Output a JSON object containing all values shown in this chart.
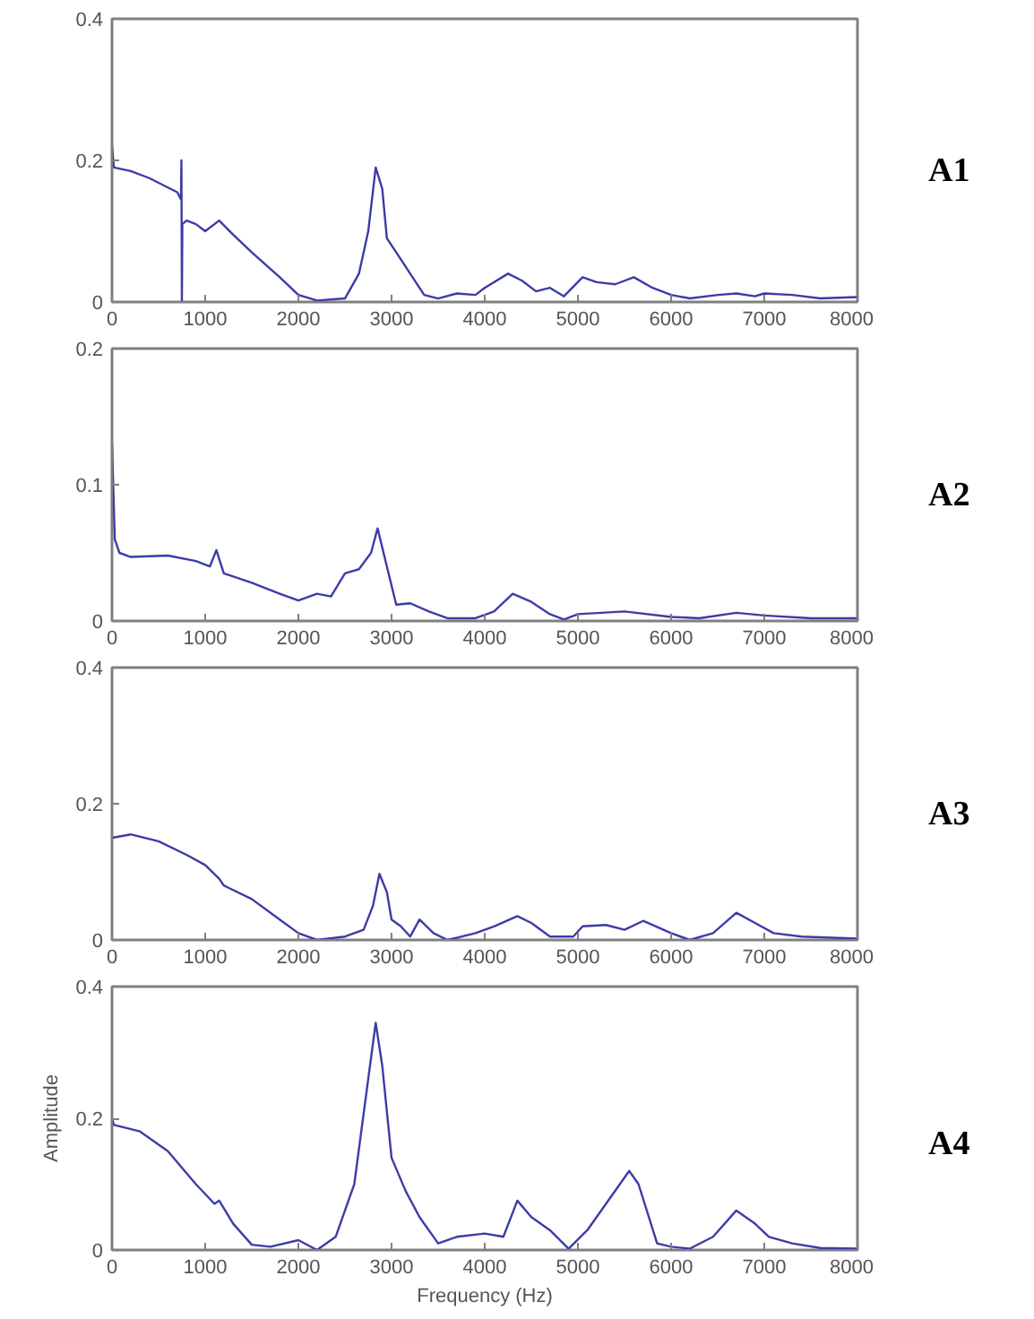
{
  "chart_data": [
    {
      "type": "line",
      "annotations": [
        "A1"
      ],
      "color": "#3c3ca8",
      "grid": false,
      "xlim": [
        0,
        8000
      ],
      "ylim": [
        0,
        0.4
      ],
      "xticks": [
        0,
        1000,
        2000,
        3000,
        4000,
        5000,
        6000,
        7000,
        8000
      ],
      "yticks": [
        0,
        0.2,
        0.4
      ],
      "x": [
        0,
        20,
        200,
        400,
        700,
        740,
        745,
        750,
        755,
        800,
        900,
        1000,
        1150,
        1300,
        1500,
        1800,
        2000,
        2200,
        2500,
        2650,
        2750,
        2830,
        2900,
        2950,
        3050,
        3200,
        3350,
        3500,
        3700,
        3900,
        4000,
        4250,
        4400,
        4550,
        4700,
        4850,
        5050,
        5200,
        5400,
        5600,
        5800,
        6000,
        6200,
        6500,
        6700,
        6900,
        7000,
        7300,
        7600,
        8000
      ],
      "values": [
        0.22,
        0.19,
        0.185,
        0.175,
        0.155,
        0.145,
        0.2,
        0.0,
        0.11,
        0.115,
        0.11,
        0.1,
        0.115,
        0.095,
        0.07,
        0.035,
        0.01,
        0.002,
        0.005,
        0.04,
        0.1,
        0.19,
        0.16,
        0.09,
        0.07,
        0.04,
        0.01,
        0.005,
        0.012,
        0.01,
        0.02,
        0.04,
        0.03,
        0.015,
        0.02,
        0.008,
        0.035,
        0.028,
        0.025,
        0.035,
        0.02,
        0.01,
        0.005,
        0.01,
        0.012,
        0.008,
        0.012,
        0.01,
        0.005,
        0.007
      ]
    },
    {
      "type": "line",
      "annotations": [
        "A2"
      ],
      "color": "#3c3ca8",
      "grid": false,
      "xlim": [
        0,
        8000
      ],
      "ylim": [
        0,
        0.2
      ],
      "xticks": [
        0,
        1000,
        2000,
        3000,
        4000,
        5000,
        6000,
        7000,
        8000
      ],
      "yticks": [
        0,
        0.1,
        0.2
      ],
      "x": [
        0,
        30,
        80,
        200,
        600,
        900,
        1050,
        1120,
        1200,
        1500,
        1800,
        2000,
        2200,
        2350,
        2500,
        2650,
        2780,
        2850,
        2950,
        3050,
        3200,
        3400,
        3600,
        3900,
        4100,
        4300,
        4500,
        4700,
        4850,
        5000,
        5500,
        6000,
        6300,
        6700,
        7000,
        7500,
        8000
      ],
      "values": [
        0.13,
        0.06,
        0.05,
        0.047,
        0.048,
        0.044,
        0.04,
        0.052,
        0.035,
        0.028,
        0.02,
        0.015,
        0.02,
        0.018,
        0.035,
        0.038,
        0.05,
        0.068,
        0.04,
        0.012,
        0.013,
        0.007,
        0.002,
        0.002,
        0.007,
        0.02,
        0.014,
        0.005,
        0.001,
        0.005,
        0.007,
        0.003,
        0.002,
        0.006,
        0.004,
        0.002,
        0.002
      ]
    },
    {
      "type": "line",
      "annotations": [
        "A3"
      ],
      "color": "#3c3ca8",
      "grid": false,
      "xlim": [
        0,
        8000
      ],
      "ylim": [
        0,
        0.4
      ],
      "xticks": [
        0,
        1000,
        2000,
        3000,
        4000,
        5000,
        6000,
        7000,
        8000
      ],
      "yticks": [
        0,
        0.2,
        0.4
      ],
      "x": [
        0,
        200,
        500,
        800,
        1000,
        1150,
        1200,
        1500,
        1800,
        2000,
        2200,
        2500,
        2700,
        2800,
        2870,
        2950,
        3000,
        3100,
        3200,
        3300,
        3450,
        3600,
        3900,
        4100,
        4350,
        4500,
        4700,
        4950,
        5050,
        5300,
        5500,
        5700,
        6000,
        6200,
        6450,
        6700,
        6900,
        7100,
        7400,
        8000
      ],
      "values": [
        0.15,
        0.155,
        0.145,
        0.125,
        0.11,
        0.09,
        0.08,
        0.06,
        0.03,
        0.01,
        0.0,
        0.005,
        0.015,
        0.05,
        0.097,
        0.07,
        0.03,
        0.02,
        0.005,
        0.03,
        0.01,
        0.0,
        0.01,
        0.02,
        0.035,
        0.025,
        0.005,
        0.005,
        0.02,
        0.022,
        0.015,
        0.028,
        0.01,
        0.0,
        0.01,
        0.04,
        0.025,
        0.01,
        0.005,
        0.002
      ]
    },
    {
      "type": "line",
      "annotations": [
        "A4"
      ],
      "xlabel": "Frequency (Hz)",
      "ylabel": "Amplitude",
      "color": "#3c3ca8",
      "grid": false,
      "xlim": [
        0,
        8000
      ],
      "ylim": [
        0,
        0.4
      ],
      "xticks": [
        0,
        1000,
        2000,
        3000,
        4000,
        5000,
        6000,
        7000,
        8000
      ],
      "yticks": [
        0,
        0.2,
        0.4
      ],
      "x": [
        0,
        20,
        300,
        600,
        900,
        1100,
        1150,
        1300,
        1500,
        1700,
        2000,
        2200,
        2400,
        2600,
        2750,
        2830,
        2900,
        3000,
        3150,
        3300,
        3500,
        3700,
        4000,
        4200,
        4350,
        4500,
        4700,
        4900,
        5100,
        5350,
        5550,
        5650,
        5850,
        6000,
        6200,
        6450,
        6700,
        6900,
        7050,
        7300,
        7600,
        8000
      ],
      "values": [
        0.2,
        0.19,
        0.18,
        0.15,
        0.1,
        0.07,
        0.075,
        0.04,
        0.008,
        0.005,
        0.015,
        0.0,
        0.02,
        0.1,
        0.26,
        0.345,
        0.28,
        0.14,
        0.09,
        0.05,
        0.01,
        0.02,
        0.025,
        0.02,
        0.075,
        0.05,
        0.03,
        0.002,
        0.03,
        0.08,
        0.12,
        0.1,
        0.01,
        0.005,
        0.002,
        0.02,
        0.06,
        0.04,
        0.02,
        0.01,
        0.003,
        0.002
      ]
    }
  ]
}
